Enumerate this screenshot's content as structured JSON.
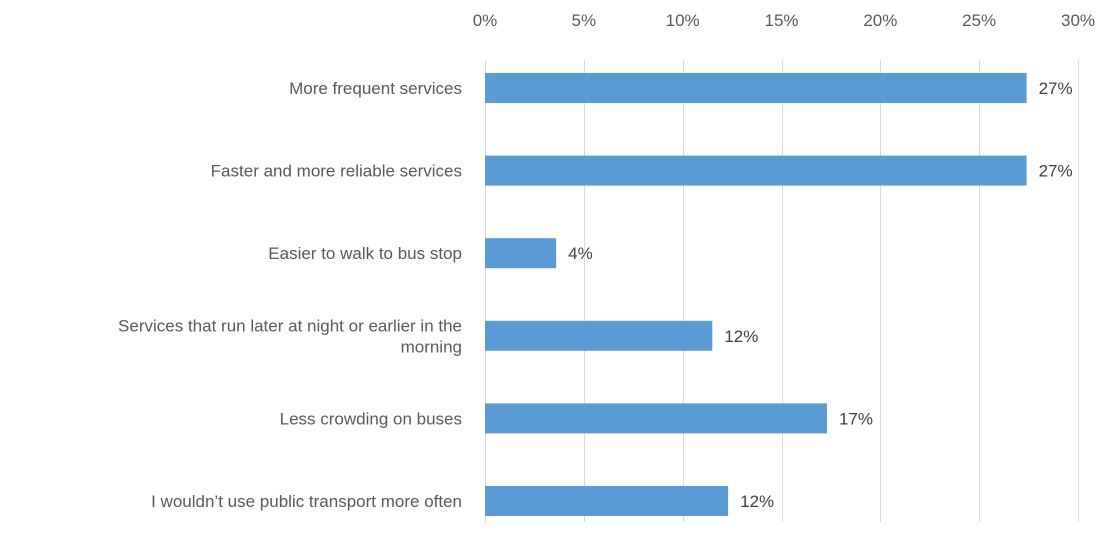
{
  "chart_data": {
    "type": "bar",
    "orientation": "horizontal",
    "title": "",
    "xlabel": "",
    "ylabel": "",
    "x_axis_position": "top",
    "xlim": [
      0,
      30
    ],
    "x_ticks": [
      0,
      5,
      10,
      15,
      20,
      25,
      30
    ],
    "x_tick_labels": [
      "0%",
      "5%",
      "10%",
      "15%",
      "20%",
      "25%",
      "30%"
    ],
    "grid": "vertical",
    "legend": "none",
    "categories": [
      "More frequent services",
      "Faster and more reliable services",
      "Easier to walk to bus stop",
      "Services that run later at night or earlier in the morning",
      "Less crowding on buses",
      "I wouldn’t use public transport more often"
    ],
    "category_label_lines": [
      [
        "More frequent services"
      ],
      [
        "Faster and more reliable services"
      ],
      [
        "Easier to walk to bus stop"
      ],
      [
        "Services that run later at night or earlier in the",
        "morning"
      ],
      [
        "Less crowding on buses"
      ],
      [
        "I wouldn’t use public transport more often"
      ]
    ],
    "values": [
      27.4,
      27.4,
      3.6,
      11.5,
      17.3,
      12.3
    ],
    "data_labels": [
      "27%",
      "27%",
      "4%",
      "12%",
      "17%",
      "12%"
    ],
    "colors": {
      "bar": "#5b9bd5",
      "gridline": "#d9d9d9",
      "text": "#595959",
      "data_label": "#404040"
    }
  }
}
